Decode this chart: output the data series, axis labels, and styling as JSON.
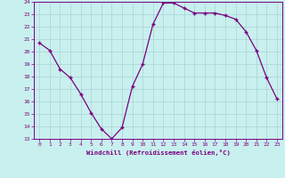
{
  "x": [
    0,
    1,
    2,
    3,
    4,
    5,
    6,
    7,
    8,
    9,
    10,
    11,
    12,
    13,
    14,
    15,
    16,
    17,
    18,
    19,
    20,
    21,
    22,
    23
  ],
  "y": [
    20.7,
    20.1,
    18.6,
    17.9,
    16.6,
    15.1,
    13.8,
    13.0,
    13.9,
    17.2,
    19.0,
    22.2,
    23.9,
    23.9,
    23.5,
    23.1,
    23.1,
    23.1,
    22.9,
    22.6,
    21.6,
    20.1,
    17.9,
    16.2
  ],
  "line_color": "#7b0080",
  "marker": "+",
  "marker_size": 4,
  "bg_color": "#c8f0ee",
  "grid_color": "#b0d8d8",
  "xlabel": "Windchill (Refroidissement éolien,°C)",
  "xlabel_color": "#7b0080",
  "tick_color": "#7b0080",
  "ylim": [
    13,
    24
  ],
  "xlim": [
    -0.5,
    23.5
  ],
  "yticks": [
    13,
    14,
    15,
    16,
    17,
    18,
    19,
    20,
    21,
    22,
    23,
    24
  ],
  "xticks": [
    0,
    1,
    2,
    3,
    4,
    5,
    6,
    7,
    8,
    9,
    10,
    11,
    12,
    13,
    14,
    15,
    16,
    17,
    18,
    19,
    20,
    21,
    22,
    23
  ]
}
